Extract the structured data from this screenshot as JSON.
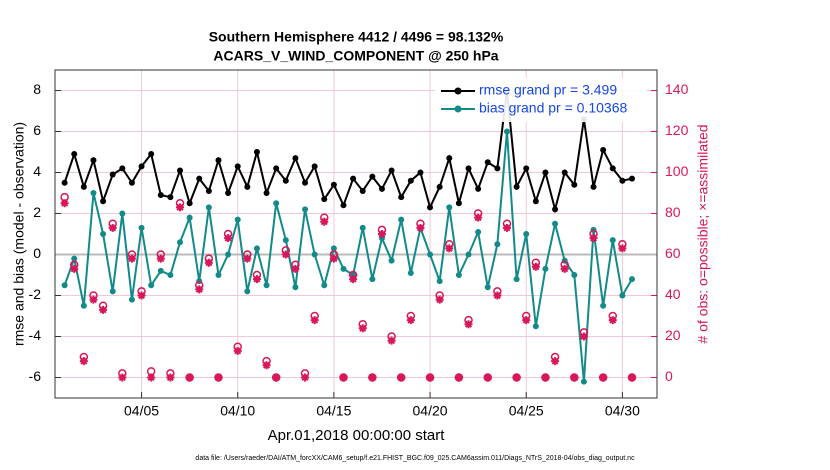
{
  "chart_data": {
    "type": "line",
    "title": "Southern Hemisphere 4412 / 4496 = 98.132%",
    "subtitle": "ACARS_V_WIND_COMPONENT @ 250 hPa",
    "x_label": "Apr.01,2018 00:00:00 start",
    "y_label": "rmse and bias (model - observation)",
    "y2_label": "# of obs: o=possible; ×=assimilated",
    "footnote": "data file: /Users/raeder/DAI/ATM_forcXX/CAM6_setup/f.e21.FHIST_BGC.f09_025.CAM6assim.011/Diags_NTrS_2018-04/obs_diag_output.nc",
    "x": [
      1,
      1.5,
      2,
      2.5,
      3,
      3.5,
      4,
      4.5,
      5,
      5.5,
      6,
      6.5,
      7,
      7.5,
      8,
      8.5,
      9,
      9.5,
      10,
      10.5,
      11,
      11.5,
      12,
      12.5,
      13,
      13.5,
      14,
      14.5,
      15,
      15.5,
      16,
      16.5,
      17,
      17.5,
      18,
      18.5,
      19,
      19.5,
      20,
      20.5,
      21,
      21.5,
      22,
      22.5,
      23,
      23.5,
      24,
      24.5,
      25,
      25.5,
      26,
      26.5,
      27,
      27.5,
      28,
      28.5,
      29,
      29.5,
      30,
      30.5
    ],
    "xlim": [
      0.5,
      31.8
    ],
    "xticks": [
      {
        "value": 5,
        "label": "04/05"
      },
      {
        "value": 10,
        "label": "04/10"
      },
      {
        "value": 15,
        "label": "04/15"
      },
      {
        "value": 20,
        "label": "04/20"
      },
      {
        "value": 25,
        "label": "04/25"
      },
      {
        "value": 30,
        "label": "04/30"
      }
    ],
    "ylim": [
      -7,
      9
    ],
    "yticks": [
      -6,
      -4,
      -2,
      0,
      2,
      4,
      6,
      8
    ],
    "y2lim": [
      -10,
      150
    ],
    "y2ticks": [
      0,
      20,
      40,
      60,
      80,
      100,
      120,
      140
    ],
    "grid": true,
    "legend": "upper right",
    "series": [
      {
        "name": "rmse grand pr = 3.499",
        "color": "#000000",
        "marker": "line",
        "values": [
          3.5,
          4.9,
          3.3,
          4.6,
          2.6,
          3.9,
          4.2,
          3.5,
          4.3,
          4.9,
          2.9,
          2.8,
          4.1,
          2.5,
          3.7,
          3.1,
          4.6,
          3.0,
          4.3,
          3.3,
          5.0,
          3.0,
          4.2,
          3.6,
          4.7,
          3.5,
          4.3,
          2.7,
          3.4,
          2.4,
          3.7,
          3.1,
          3.8,
          3.2,
          4.1,
          2.8,
          3.6,
          4.0,
          2.3,
          3.3,
          4.7,
          2.5,
          4.2,
          3.2,
          4.5,
          4.2,
          8.0,
          3.3,
          4.2,
          2.6,
          4.0,
          2.2,
          4.0,
          3.4,
          6.6,
          3.3,
          5.1,
          4.2,
          3.6,
          3.7
        ]
      },
      {
        "name": "bias grand pr = 0.10368",
        "color": "#138a8a",
        "marker": "line",
        "values": [
          -1.5,
          -0.2,
          -2.5,
          3.0,
          1.0,
          -1.8,
          2.0,
          -2.2,
          1.3,
          -1.5,
          -0.8,
          -1.0,
          0.6,
          1.8,
          -1.3,
          2.3,
          -1.0,
          0.0,
          1.7,
          -1.8,
          0.3,
          -1.5,
          2.5,
          0.7,
          -1.6,
          2.2,
          0.0,
          -1.5,
          0.3,
          -0.7,
          -1.0,
          1.3,
          -1.2,
          0.8,
          -0.3,
          1.7,
          -0.9,
          1.3,
          0.0,
          -1.3,
          2.3,
          -1.0,
          0.0,
          1.1,
          -1.6,
          0.5,
          6.0,
          -1.2,
          1.0,
          -3.5,
          -0.7,
          1.5,
          -0.3,
          -1.0,
          -6.2,
          1.2,
          -2.5,
          0.7,
          -2.0,
          -1.2
        ]
      },
      {
        "color": "#d8175a",
        "marker": "o",
        "axis": "y2",
        "values": [
          88,
          55,
          10,
          40,
          35,
          75,
          2,
          60,
          42,
          3,
          60,
          2,
          85,
          0,
          45,
          58,
          0,
          70,
          15,
          60,
          50,
          8,
          0,
          62,
          55,
          2,
          30,
          78,
          60,
          0,
          50,
          26,
          0,
          72,
          20,
          0,
          30,
          75,
          0,
          40,
          65,
          0,
          28,
          80,
          0,
          42,
          75,
          0,
          30,
          56,
          0,
          10,
          55,
          0,
          22,
          70,
          0,
          30,
          65,
          0
        ]
      },
      {
        "color": "#d8175a",
        "marker": "*",
        "axis": "y2",
        "values": [
          85,
          53,
          8,
          38,
          33,
          73,
          0,
          58,
          40,
          0,
          58,
          0,
          83,
          0,
          43,
          56,
          0,
          68,
          13,
          58,
          48,
          6,
          0,
          60,
          53,
          0,
          28,
          76,
          58,
          0,
          48,
          24,
          0,
          70,
          18,
          0,
          28,
          73,
          0,
          38,
          63,
          0,
          26,
          78,
          0,
          40,
          73,
          0,
          28,
          54,
          0,
          8,
          53,
          0,
          20,
          68,
          0,
          28,
          63,
          0
        ]
      }
    ]
  }
}
